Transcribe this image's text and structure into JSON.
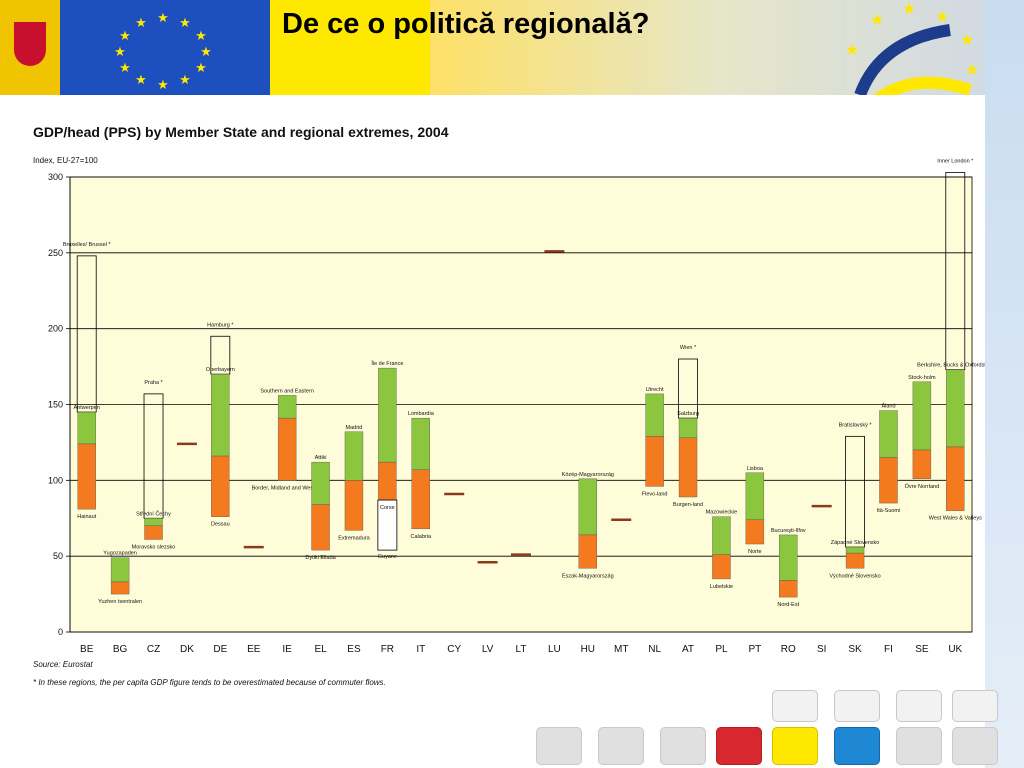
{
  "header": {
    "title": "De ce o politică regională?"
  },
  "chart_data": {
    "type": "bar",
    "title": "GDP/head (PPS) by Member State and regional extremes, 2004",
    "ylabel": "Index, EU-27=100",
    "ylim": [
      0,
      300
    ],
    "yticks": [
      0,
      50,
      100,
      150,
      200,
      250,
      300
    ],
    "categories": [
      "BE",
      "BG",
      "CZ",
      "DK",
      "DE",
      "EE",
      "IE",
      "EL",
      "ES",
      "FR",
      "IT",
      "CY",
      "LV",
      "LT",
      "LU",
      "HU",
      "MT",
      "NL",
      "AT",
      "PL",
      "PT",
      "RO",
      "SI",
      "SK",
      "FI",
      "SE",
      "UK"
    ],
    "series": [
      {
        "category": "BE",
        "min": 81,
        "national": 124,
        "max": 145,
        "min_region": "Hainaut",
        "max_region": "Antwerpen",
        "extra_max": 248,
        "extra_label": "Bruxelles/ Brussel *"
      },
      {
        "category": "BG",
        "min": 25,
        "national": 33,
        "max": 49,
        "min_region": "Yuzhen tsentralen",
        "max_region": "Yugozapaden"
      },
      {
        "category": "CZ",
        "min": 61,
        "national": 70,
        "max": 75,
        "min_region": "Moravsko slezsko",
        "max_region": "Střední Čechy",
        "extra_max": 157,
        "extra_label": "Praha *"
      },
      {
        "category": "DK",
        "national": 124
      },
      {
        "category": "DE",
        "min": 76,
        "national": 116,
        "max": 170,
        "min_region": "Dessau",
        "max_region": "Oberbayern",
        "extra_max": 195,
        "extra_label": "Hamburg *"
      },
      {
        "category": "EE",
        "national": 56
      },
      {
        "category": "IE",
        "min": 100,
        "national": 141,
        "max": 156,
        "min_region": "Border, Midland and Western",
        "max_region": "Southern and Eastern"
      },
      {
        "category": "EL",
        "min": 54,
        "national": 84,
        "max": 112,
        "min_region": "Dytiki Ellada",
        "max_region": "Attiki"
      },
      {
        "category": "ES",
        "min": 67,
        "national": 100,
        "max": 132,
        "min_region": "Extremadura",
        "max_region": "Madrid"
      },
      {
        "category": "FR",
        "min": 87,
        "national": 112,
        "max": 174,
        "min_region": "Corse",
        "max_region": "Île de France",
        "extra_min": 54,
        "extra_min_label": "Guyane"
      },
      {
        "category": "IT",
        "min": 68,
        "national": 107,
        "max": 141,
        "min_region": "Calabria",
        "max_region": "Lombardia"
      },
      {
        "category": "CY",
        "national": 91
      },
      {
        "category": "LV",
        "national": 46
      },
      {
        "category": "LT",
        "national": 51
      },
      {
        "category": "LU",
        "national": 251
      },
      {
        "category": "HU",
        "min": 42,
        "national": 64,
        "max": 101,
        "min_region": "Észak-Magyarország",
        "max_region": "Közép-Magyarország"
      },
      {
        "category": "MT",
        "national": 74
      },
      {
        "category": "NL",
        "min": 96,
        "national": 129,
        "max": 157,
        "min_region": "Flevo-land",
        "max_region": "Utrecht"
      },
      {
        "category": "AT",
        "min": 89,
        "national": 128,
        "max": 141,
        "min_region": "Burgen-land",
        "max_region": "Salzburg",
        "extra_max": 180,
        "extra_label": "Wien *"
      },
      {
        "category": "PL",
        "min": 35,
        "national": 51,
        "max": 76,
        "min_region": "Lubelskie",
        "max_region": "Mazowieckie"
      },
      {
        "category": "PT",
        "min": 58,
        "national": 74,
        "max": 105,
        "min_region": "Norte",
        "max_region": "Lisboa"
      },
      {
        "category": "RO",
        "min": 23,
        "national": 34,
        "max": 64,
        "min_region": "Nord-Est",
        "max_region": "Bucureşti-Ilfov"
      },
      {
        "category": "SI",
        "national": 83
      },
      {
        "category": "SK",
        "min": 42,
        "national": 52,
        "max": 56,
        "min_region": "Východné Slovensko",
        "max_region": "Západné Slovensko",
        "extra_max": 129,
        "extra_label": "Bratislavský *"
      },
      {
        "category": "FI",
        "min": 85,
        "national": 115,
        "max": 146,
        "min_region": "Itä-Suomi",
        "max_region": "Åland"
      },
      {
        "category": "SE",
        "min": 101,
        "national": 120,
        "max": 165,
        "min_region": "Övre Norrland",
        "max_region": "Stock-holm"
      },
      {
        "category": "UK",
        "min": 80,
        "national": 122,
        "max": 173,
        "min_region": "West Wales & Valleys",
        "max_region": "Berkshire, Bucks & Oxfordshire",
        "extra_max": 303,
        "extra_label": "Inner London *"
      }
    ],
    "colors": {
      "upper": "#8cc63f",
      "lower": "#f47a20",
      "national": "#8b3a1a",
      "plot_bg": "#fffdd9",
      "grid": "#000000"
    },
    "source": "Source: Eurostat",
    "footnote": "* In these regions, the per capita GDP figure tends to be overestimated because of commuter flows."
  }
}
